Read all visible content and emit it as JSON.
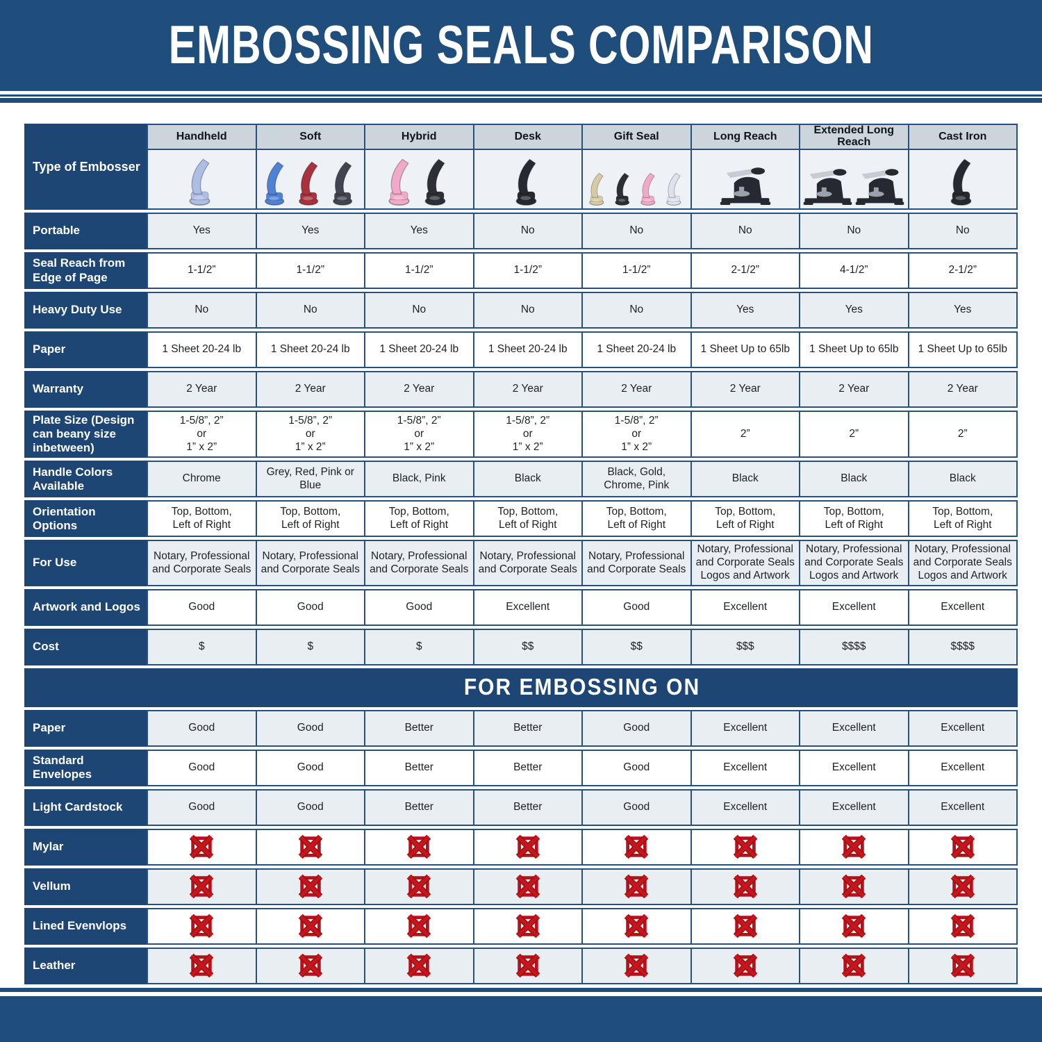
{
  "title": "EMBOSSING SEALS COMPARISON",
  "section_title": "FOR EMBOSSING ON",
  "corner_label": "Type of Embosser",
  "colors": {
    "banner_navy": "#1f4e7d",
    "label_navy": "#1d4674",
    "grid_border": "#27507f",
    "column_header_bg": "#ccd4dc",
    "image_row_bg": "#eef1f5",
    "light_row_bg": "#e9eef2",
    "white_row_bg": "#ffffff",
    "red_x": "#b5121b",
    "cell_text": "#1d2125"
  },
  "chart_data": {
    "type": "table",
    "columns": [
      {
        "label": "Handheld",
        "icon": "plier",
        "variants": [
          "#aebde4"
        ]
      },
      {
        "label": "Soft",
        "icon": "plier",
        "variants": [
          "#4f82d6",
          "#a8333f",
          "#41454f"
        ]
      },
      {
        "label": "Hybrid",
        "icon": "plier",
        "variants": [
          "#f0a9c8",
          "#2c2f36"
        ]
      },
      {
        "label": "Desk",
        "icon": "plier",
        "variants": [
          "#26292f"
        ]
      },
      {
        "label": "Gift Seal",
        "icon": "plier",
        "variants": [
          "#d6cba4",
          "#2c2f36",
          "#f0a9c8",
          "#dde2ec"
        ]
      },
      {
        "label": "Long Reach",
        "icon": "press",
        "variants": [
          "#26292f"
        ]
      },
      {
        "label": "Extended Long Reach",
        "icon": "press",
        "variants": [
          "#26292f",
          "#26292f"
        ]
      },
      {
        "label": "Cast Iron",
        "icon": "plier",
        "variants": [
          "#26292f"
        ]
      }
    ],
    "spec_rows": [
      {
        "label": "Portable",
        "values": [
          "Yes",
          "Yes",
          "Yes",
          "No",
          "No",
          "No",
          "No",
          "No"
        ]
      },
      {
        "label": "Seal Reach from Edge of Page",
        "values": [
          "1-1/2”",
          "1-1/2”",
          "1-1/2”",
          "1-1/2”",
          "1-1/2”",
          "2-1/2”",
          "4-1/2”",
          "2-1/2”"
        ]
      },
      {
        "label": "Heavy Duty Use",
        "values": [
          "No",
          "No",
          "No",
          "No",
          "No",
          "Yes",
          "Yes",
          "Yes"
        ]
      },
      {
        "label": "Paper",
        "values": [
          "1 Sheet 20-24 lb",
          "1 Sheet 20-24 lb",
          "1 Sheet 20-24 lb",
          "1 Sheet 20-24 lb",
          "1 Sheet 20-24 lb",
          "1 Sheet Up to 65lb",
          "1 Sheet Up to 65lb",
          "1 Sheet Up to 65lb"
        ]
      },
      {
        "label": "Warranty",
        "values": [
          "2 Year",
          "2 Year",
          "2 Year",
          "2 Year",
          "2 Year",
          "2 Year",
          "2 Year",
          "2 Year"
        ]
      },
      {
        "label": "Plate Size (Design can beany size inbetween)",
        "values": [
          "1-5/8”, 2”\nor\n1” x 2”",
          "1-5/8”, 2”\nor\n1” x 2”",
          "1-5/8”, 2”\nor\n1” x 2”",
          "1-5/8”, 2”\nor\n1” x 2”",
          "1-5/8”, 2”\nor\n1” x 2”",
          "2”",
          "2”",
          "2”"
        ]
      },
      {
        "label": "Handle Colors Available",
        "values": [
          "Chrome",
          "Grey, Red, Pink or Blue",
          "Black, Pink",
          "Black",
          "Black, Gold, Chrome, Pink",
          "Black",
          "Black",
          "Black"
        ]
      },
      {
        "label": "Orientation Options",
        "values": [
          "Top, Bottom,\nLeft of Right",
          "Top, Bottom,\nLeft of Right",
          "Top, Bottom,\nLeft of Right",
          "Top, Bottom,\nLeft of Right",
          "Top, Bottom,\nLeft of Right",
          "Top, Bottom,\nLeft of Right",
          "Top, Bottom,\nLeft of Right",
          "Top, Bottom,\nLeft of Right"
        ]
      },
      {
        "label": "For Use",
        "values": [
          "Notary, Professional\nand Corporate Seals",
          "Notary, Professional\nand Corporate Seals",
          "Notary, Professional\nand Corporate Seals",
          "Notary, Professional\nand Corporate Seals",
          "Notary, Professional\nand Corporate Seals",
          "Notary, Professional\nand Corporate Seals\nLogos and Artwork",
          "Notary, Professional\nand Corporate Seals\nLogos and Artwork",
          "Notary, Professional\nand Corporate Seals\nLogos and Artwork"
        ]
      },
      {
        "label": "Artwork and Logos",
        "values": [
          "Good",
          "Good",
          "Good",
          "Excellent",
          "Good",
          "Excellent",
          "Excellent",
          "Excellent"
        ]
      },
      {
        "label": "Cost",
        "values": [
          "$",
          "$",
          "$",
          "$$",
          "$$",
          "$$$",
          "$$$$",
          "$$$$"
        ]
      }
    ],
    "embossing_rows": [
      {
        "label": "Paper",
        "values": [
          "Good",
          "Good",
          "Better",
          "Better",
          "Good",
          "Excellent",
          "Excellent",
          "Excellent"
        ]
      },
      {
        "label": "Standard Envelopes",
        "values": [
          "Good",
          "Good",
          "Better",
          "Better",
          "Good",
          "Excellent",
          "Excellent",
          "Excellent"
        ]
      },
      {
        "label": "Light Cardstock",
        "values": [
          "Good",
          "Good",
          "Better",
          "Better",
          "Good",
          "Excellent",
          "Excellent",
          "Excellent"
        ]
      },
      {
        "label": "Mylar",
        "values": [
          "no-icon",
          "no-icon",
          "no-icon",
          "no-icon",
          "no-icon",
          "no-icon",
          "no-icon",
          "no-icon"
        ]
      },
      {
        "label": "Vellum",
        "values": [
          "no-icon",
          "no-icon",
          "no-icon",
          "no-icon",
          "no-icon",
          "no-icon",
          "no-icon",
          "no-icon"
        ]
      },
      {
        "label": "Lined Evenvlops",
        "values": [
          "no-icon",
          "no-icon",
          "no-icon",
          "no-icon",
          "no-icon",
          "no-icon",
          "no-icon",
          "no-icon"
        ]
      },
      {
        "label": "Leather",
        "values": [
          "no-icon",
          "no-icon",
          "no-icon",
          "no-icon",
          "no-icon",
          "no-icon",
          "no-icon",
          "no-icon"
        ]
      }
    ]
  }
}
